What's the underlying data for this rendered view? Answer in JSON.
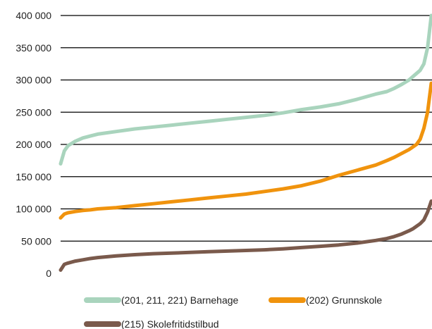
{
  "chart_data": {
    "type": "line",
    "ylim": [
      0,
      400000
    ],
    "yticks": [
      0,
      50000,
      100000,
      150000,
      200000,
      250000,
      300000,
      350000,
      400000
    ],
    "ytick_labels": [
      "0",
      "50 000",
      "100 000",
      "150 000",
      "200 000",
      "250 000",
      "300 000",
      "350 000",
      "400 000"
    ],
    "xlim": [
      0,
      100
    ],
    "grid": true,
    "legend_position": "bottom",
    "x": [
      0,
      1,
      2,
      4,
      6,
      8,
      10,
      15,
      20,
      25,
      30,
      35,
      40,
      45,
      50,
      55,
      60,
      65,
      70,
      75,
      80,
      85,
      88,
      90,
      92,
      94,
      95,
      96,
      97,
      98,
      99,
      100
    ],
    "series": [
      {
        "name": "(201, 211, 221) Barnehage",
        "color": "#a9d4bd",
        "values": [
          170000,
          190000,
          198000,
          205000,
          210000,
          213000,
          216000,
          220000,
          224000,
          227000,
          230000,
          233000,
          236000,
          239000,
          242000,
          245000,
          249000,
          254000,
          258000,
          263000,
          270000,
          278000,
          282000,
          287000,
          293000,
          300000,
          305000,
          310000,
          315000,
          325000,
          350000,
          400000
        ]
      },
      {
        "name": "(202) Grunnskole",
        "color": "#f0930d",
        "values": [
          86000,
          92000,
          94000,
          96000,
          97500,
          98500,
          100000,
          102000,
          105000,
          108000,
          111000,
          114000,
          117000,
          120000,
          123000,
          127000,
          131000,
          136000,
          143000,
          152000,
          160000,
          168000,
          175000,
          180000,
          186000,
          192000,
          196000,
          200000,
          208000,
          225000,
          250000,
          295000
        ]
      },
      {
        "name": "(215) Skolefritidstilbud",
        "color": "#7a5a4c",
        "values": [
          5000,
          14000,
          16000,
          19000,
          21000,
          23000,
          24500,
          27000,
          29000,
          30500,
          31500,
          32500,
          33500,
          34500,
          35500,
          36500,
          38000,
          40000,
          42000,
          44000,
          47000,
          51000,
          54000,
          57000,
          61000,
          66000,
          69000,
          73000,
          77000,
          83000,
          95000,
          112000
        ]
      }
    ]
  }
}
